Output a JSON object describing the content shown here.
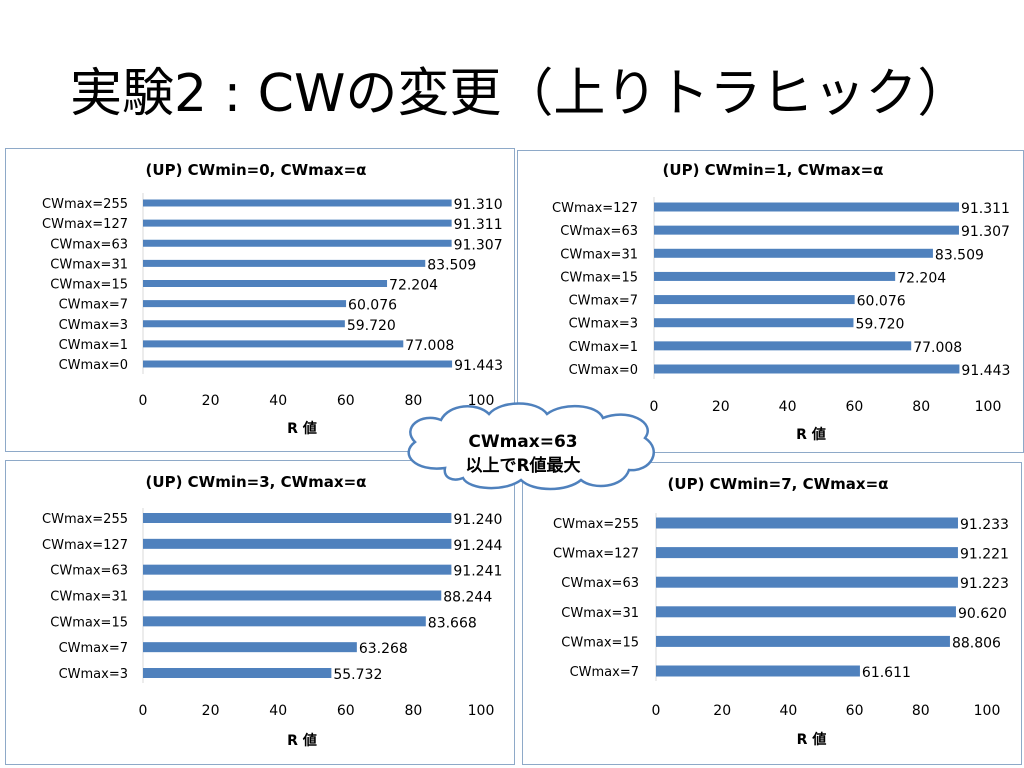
{
  "slide": {
    "title": "実験2 : CWの変更（上りトラヒック）"
  },
  "callout": {
    "line1": "CWmax=63",
    "line2": "以上でR値最大"
  },
  "chart_data": [
    {
      "type": "bar",
      "orientation": "horizontal",
      "title": "(UP) CWmin=0,  CWmax=α",
      "xlabel": "R 値",
      "xlim": [
        0,
        100
      ],
      "xticks": [
        0,
        20,
        40,
        60,
        80,
        100
      ],
      "categories": [
        "CWmax=255",
        "CWmax=127",
        "CWmax=63",
        "CWmax=31",
        "CWmax=15",
        "CWmax=7",
        "CWmax=3",
        "CWmax=1",
        "CWmax=0"
      ],
      "values": [
        91.31,
        91.311,
        91.307,
        83.509,
        72.204,
        60.076,
        59.72,
        77.008,
        91.443
      ],
      "labels": [
        "91.310",
        "91.311",
        "91.307",
        "83.509",
        "72.204",
        "60.076",
        "59.720",
        "77.008",
        "91.443"
      ],
      "color": "#4f81bd"
    },
    {
      "type": "bar",
      "orientation": "horizontal",
      "title": "(UP) CWmin=1,  CWmax=α",
      "xlabel": "R 値",
      "xlim": [
        0,
        100
      ],
      "xticks": [
        0,
        20,
        40,
        60,
        80,
        100
      ],
      "categories": [
        "CWmax=127",
        "CWmax=63",
        "CWmax=31",
        "CWmax=15",
        "CWmax=7",
        "CWmax=3",
        "CWmax=1",
        "CWmax=0"
      ],
      "values": [
        91.311,
        91.307,
        83.509,
        72.204,
        60.076,
        59.72,
        77.008,
        91.443
      ],
      "labels": [
        "91.311",
        "91.307",
        "83.509",
        "72.204",
        "60.076",
        "59.720",
        "77.008",
        "91.443"
      ],
      "color": "#4f81bd"
    },
    {
      "type": "bar",
      "orientation": "horizontal",
      "title": "(UP) CWmin=3,  CWmax=α",
      "xlabel": "R 値",
      "xlim": [
        0,
        100
      ],
      "xticks": [
        0,
        20,
        40,
        60,
        80,
        100
      ],
      "categories": [
        "CWmax=255",
        "CWmax=127",
        "CWmax=63",
        "CWmax=31",
        "CWmax=15",
        "CWmax=7",
        "CWmax=3"
      ],
      "values": [
        91.24,
        91.244,
        91.241,
        88.244,
        83.668,
        63.268,
        55.732
      ],
      "labels": [
        "91.240",
        "91.244",
        "91.241",
        "88.244",
        "83.668",
        "63.268",
        "55.732"
      ],
      "color": "#4f81bd"
    },
    {
      "type": "bar",
      "orientation": "horizontal",
      "title": "(UP) CWmin=7, CWmax=α",
      "xlabel": "R 値",
      "xlim": [
        0,
        100
      ],
      "xticks": [
        0,
        20,
        40,
        60,
        80,
        100
      ],
      "categories": [
        "CWmax=255",
        "CWmax=127",
        "CWmax=63",
        "CWmax=31",
        "CWmax=15",
        "CWmax=7"
      ],
      "values": [
        91.233,
        91.221,
        91.223,
        90.62,
        88.806,
        61.611
      ],
      "labels": [
        "91.233",
        "91.221",
        "91.223",
        "90.620",
        "88.806",
        "61.611"
      ],
      "color": "#4f81bd"
    }
  ]
}
